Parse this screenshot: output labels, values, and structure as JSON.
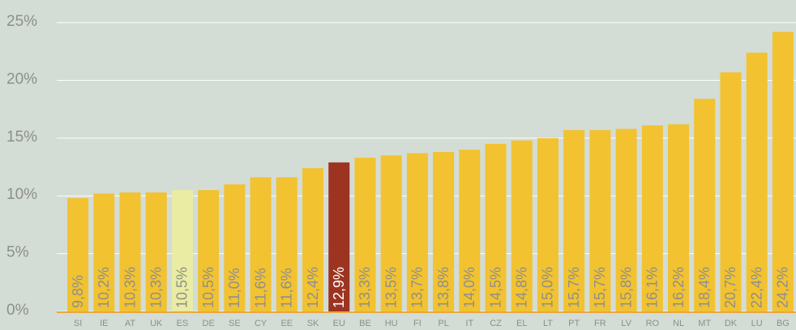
{
  "chart_data": {
    "type": "bar",
    "categories": [
      "SI",
      "IE",
      "AT",
      "UK",
      "ES",
      "DE",
      "SE",
      "CY",
      "EE",
      "SK",
      "EU",
      "BE",
      "HU",
      "FI",
      "PL",
      "IT",
      "CZ",
      "EL",
      "LT",
      "PT",
      "FR",
      "LV",
      "RO",
      "NL",
      "MT",
      "DK",
      "LU",
      "BG"
    ],
    "values": [
      9.8,
      10.2,
      10.3,
      10.3,
      10.5,
      10.5,
      11.0,
      11.6,
      11.6,
      12.4,
      12.9,
      13.3,
      13.5,
      13.7,
      13.8,
      14.0,
      14.5,
      14.8,
      15.0,
      15.7,
      15.7,
      15.8,
      16.1,
      16.2,
      18.4,
      20.7,
      22.4,
      24.2
    ],
    "value_labels": [
      "9,8%",
      "10,2%",
      "10,3%",
      "10,3%",
      "10,5%",
      "10,5%",
      "11,0%",
      "11,6%",
      "11,6%",
      "12,4%",
      "12,9%",
      "13,3%",
      "13,5%",
      "13,7%",
      "13,8%",
      "14,0%",
      "14,5%",
      "14,8%",
      "15,0%",
      "15,7%",
      "15,7%",
      "15,8%",
      "16,1%",
      "16,2%",
      "18,4%",
      "20,7%",
      "22,4%",
      "24,2%"
    ],
    "colors": [
      "#f2c230",
      "#f2c230",
      "#f2c230",
      "#f2c230",
      "#e9eca2",
      "#f2c230",
      "#f2c230",
      "#f2c230",
      "#f2c230",
      "#f2c230",
      "#9c3421",
      "#f2c230",
      "#f2c230",
      "#f2c230",
      "#f2c230",
      "#f2c230",
      "#f2c230",
      "#f2c230",
      "#f2c230",
      "#f2c230",
      "#f2c230",
      "#f2c230",
      "#f2c230",
      "#f2c230",
      "#f2c230",
      "#f2c230",
      "#f2c230",
      "#f2c230"
    ],
    "ylim": [
      0,
      25
    ],
    "yticks": [
      {
        "value": 0,
        "label": "0%"
      },
      {
        "value": 5,
        "label": "5%"
      },
      {
        "value": 10,
        "label": "10%"
      },
      {
        "value": 15,
        "label": "15%"
      },
      {
        "value": 20,
        "label": "20%"
      },
      {
        "value": 25,
        "label": "25%"
      }
    ],
    "grid": true
  }
}
